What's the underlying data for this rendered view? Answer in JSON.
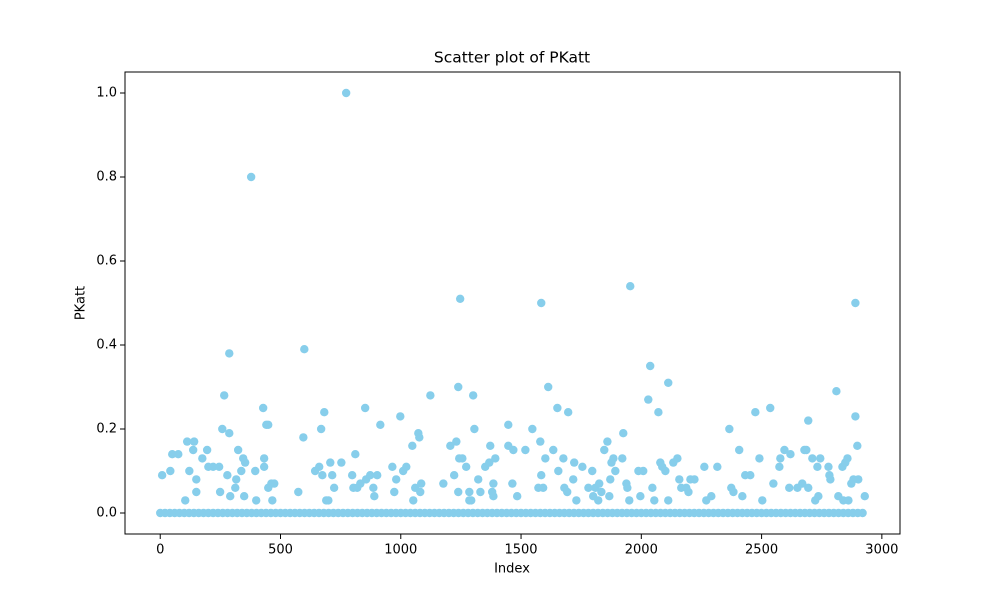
{
  "chart_data": {
    "type": "scatter",
    "title": "Scatter plot of PKatt",
    "x_label": "Index",
    "y_label": "PKatt",
    "color": "#87ceeb",
    "x": [
      0,
      20,
      40,
      60,
      80,
      100,
      120,
      140,
      160,
      180,
      200,
      220,
      240,
      260,
      280,
      300,
      320,
      340,
      360,
      380,
      400,
      420,
      440,
      460,
      480,
      500,
      520,
      540,
      560,
      580,
      600,
      620,
      640,
      660,
      680,
      700,
      720,
      740,
      760,
      780,
      800,
      820,
      840,
      860,
      880,
      900,
      920,
      940,
      960,
      980,
      1000,
      1020,
      1040,
      1060,
      1080,
      1100,
      1120,
      1140,
      1160,
      1180,
      1200,
      1220,
      1240,
      1260,
      1280,
      1300,
      1320,
      1340,
      1360,
      1380,
      1400,
      1420,
      1440,
      1460,
      1480,
      1500,
      1520,
      1540,
      1560,
      1580,
      1600,
      1620,
      1640,
      1660,
      1680,
      1700,
      1720,
      1740,
      1760,
      1780,
      1800,
      1820,
      1840,
      1860,
      1880,
      1900,
      1920,
      1940,
      1960,
      1980,
      2000,
      2020,
      2040,
      2060,
      2080,
      2100,
      2120,
      2140,
      2160,
      2180,
      2200,
      2220,
      2240,
      2260,
      2280,
      2300,
      2320,
      2340,
      2360,
      2380,
      2400,
      2420,
      2440,
      2460,
      2480,
      2500,
      2520,
      2540,
      2560,
      2580,
      2600,
      2620,
      2640,
      2660,
      2680,
      2700,
      2720,
      2740,
      2760,
      2780,
      2800,
      2820,
      2840,
      2860,
      2880,
      2900,
      2920,
      8,
      42,
      50,
      75,
      104,
      112,
      121,
      137,
      141,
      150,
      150,
      175,
      195,
      200,
      220,
      245,
      249,
      258,
      266,
      279,
      287,
      287,
      291,
      312,
      316,
      324,
      337,
      345,
      349,
      353,
      378,
      395,
      399,
      428,
      432,
      432,
      441,
      449,
      449,
      462,
      466,
      474,
      574,
      599,
      595,
      644,
      661,
      669,
      674,
      682,
      690,
      699,
      707,
      715,
      723,
      753,
      773,
      798,
      803,
      811,
      819,
      832,
      852,
      856,
      873,
      886,
      890,
      902,
      915,
      965,
      973,
      981,
      998,
      1010,
      1023,
      1048,
      1052,
      1060,
      1073,
      1077,
      1081,
      1085,
      1123,
      1177,
      1206,
      1222,
      1231,
      1239,
      1239,
      1243,
      1247,
      1256,
      1272,
      1285,
      1285,
      1293,
      1301,
      1306,
      1322,
      1331,
      1351,
      1368,
      1372,
      1380,
      1385,
      1385,
      1393,
      1447,
      1447,
      1464,
      1468,
      1484,
      1518,
      1547,
      1572,
      1580,
      1584,
      1584,
      1592,
      1601,
      1613,
      1634,
      1651,
      1655,
      1676,
      1680,
      1692,
      1696,
      1717,
      1721,
      1730,
      1755,
      1780,
      1796,
      1800,
      1809,
      1821,
      1825,
      1834,
      1846,
      1859,
      1867,
      1871,
      1876,
      1884,
      1892,
      1925,
      1921,
      1938,
      1942,
      1950,
      1954,
      1988,
      1996,
      2008,
      2029,
      2037,
      2046,
      2054,
      2071,
      2079,
      2087,
      2100,
      2112,
      2112,
      2133,
      2150,
      2158,
      2166,
      2187,
      2196,
      2204,
      2221,
      2262,
      2270,
      2291,
      2316,
      2366,
      2374,
      2383,
      2407,
      2420,
      2432,
      2453,
      2474,
      2491,
      2503,
      2536,
      2549,
      2574,
      2578,
      2595,
      2620,
      2615,
      2649,
      2669,
      2678,
      2686,
      2694,
      2694,
      2711,
      2723,
      2732,
      2744,
      2736,
      2778,
      2782,
      2786,
      2811,
      2819,
      2836,
      2840,
      2848,
      2857,
      2861,
      2873,
      2882,
      2890,
      2890,
      2898,
      2902,
      2929
    ],
    "y": [
      0,
      0,
      0,
      0,
      0,
      0,
      0,
      0,
      0,
      0,
      0,
      0,
      0,
      0,
      0,
      0,
      0,
      0,
      0,
      0,
      0,
      0,
      0,
      0,
      0,
      0,
      0,
      0,
      0,
      0,
      0,
      0,
      0,
      0,
      0,
      0,
      0,
      0,
      0,
      0,
      0,
      0,
      0,
      0,
      0,
      0,
      0,
      0,
      0,
      0,
      0,
      0,
      0,
      0,
      0,
      0,
      0,
      0,
      0,
      0,
      0,
      0,
      0,
      0,
      0,
      0,
      0,
      0,
      0,
      0,
      0,
      0,
      0,
      0,
      0,
      0,
      0,
      0,
      0,
      0,
      0,
      0,
      0,
      0,
      0,
      0,
      0,
      0,
      0,
      0,
      0,
      0,
      0,
      0,
      0,
      0,
      0,
      0,
      0,
      0,
      0,
      0,
      0,
      0,
      0,
      0,
      0,
      0,
      0,
      0,
      0,
      0,
      0,
      0,
      0,
      0,
      0,
      0,
      0,
      0,
      0,
      0,
      0,
      0,
      0,
      0,
      0,
      0,
      0,
      0,
      0,
      0,
      0,
      0,
      0,
      0,
      0,
      0,
      0,
      0,
      0,
      0,
      0,
      0,
      0,
      0,
      0,
      0.09,
      0.1,
      0.14,
      0.14,
      0.03,
      0.17,
      0.1,
      0.15,
      0.17,
      0.05,
      0.08,
      0.13,
      0.15,
      0.11,
      0.11,
      0.11,
      0.05,
      0.2,
      0.28,
      0.09,
      0.38,
      0.19,
      0.04,
      0.06,
      0.08,
      0.15,
      0.1,
      0.13,
      0.04,
      0.12,
      0.8,
      0.1,
      0.03,
      0.25,
      0.11,
      0.13,
      0.21,
      0.21,
      0.06,
      0.07,
      0.03,
      0.07,
      0.05,
      0.39,
      0.18,
      0.1,
      0.11,
      0.2,
      0.09,
      0.24,
      0.03,
      0.03,
      0.12,
      0.09,
      0.06,
      0.12,
      1.0,
      0.09,
      0.06,
      0.14,
      0.06,
      0.07,
      0.25,
      0.08,
      0.09,
      0.06,
      0.04,
      0.09,
      0.21,
      0.11,
      0.05,
      0.08,
      0.23,
      0.1,
      0.11,
      0.16,
      0.03,
      0.06,
      0.19,
      0.18,
      0.05,
      0.07,
      0.28,
      0.07,
      0.16,
      0.09,
      0.17,
      0.3,
      0.05,
      0.13,
      0.51,
      0.13,
      0.11,
      0.05,
      0.03,
      0.03,
      0.28,
      0.2,
      0.08,
      0.05,
      0.11,
      0.12,
      0.16,
      0.05,
      0.04,
      0.07,
      0.13,
      0.21,
      0.16,
      0.07,
      0.15,
      0.04,
      0.15,
      0.2,
      0.06,
      0.17,
      0.5,
      0.09,
      0.06,
      0.13,
      0.3,
      0.15,
      0.25,
      0.1,
      0.13,
      0.06,
      0.05,
      0.24,
      0.08,
      0.12,
      0.03,
      0.11,
      0.06,
      0.1,
      0.04,
      0.06,
      0.03,
      0.07,
      0.05,
      0.15,
      0.17,
      0.04,
      0.08,
      0.12,
      0.13,
      0.1,
      0.19,
      0.13,
      0.07,
      0.06,
      0.03,
      0.54,
      0.1,
      0.04,
      0.1,
      0.27,
      0.35,
      0.06,
      0.03,
      0.24,
      0.12,
      0.11,
      0.1,
      0.31,
      0.03,
      0.12,
      0.13,
      0.08,
      0.06,
      0.06,
      0.05,
      0.08,
      0.08,
      0.11,
      0.03,
      0.04,
      0.11,
      0.2,
      0.06,
      0.05,
      0.15,
      0.04,
      0.09,
      0.09,
      0.24,
      0.13,
      0.03,
      0.25,
      0.07,
      0.11,
      0.13,
      0.15,
      0.14,
      0.06,
      0.06,
      0.07,
      0.15,
      0.15,
      0.06,
      0.22,
      0.13,
      0.03,
      0.11,
      0.13,
      0.04,
      0.11,
      0.09,
      0.08,
      0.29,
      0.04,
      0.11,
      0.03,
      0.12,
      0.13,
      0.03,
      0.07,
      0.08,
      0.23,
      0.5,
      0.16,
      0.08,
      0.04
    ],
    "xlim": [
      -146.45,
      3075.45
    ],
    "ylim": [
      -0.05,
      1.05
    ],
    "xticks": [
      0,
      500,
      1000,
      1500,
      2000,
      2500,
      3000
    ],
    "yticks": [
      {
        "value": 0,
        "label": "0.0"
      },
      0.2,
      0.4,
      0.6,
      0.8,
      {
        "value": 1,
        "label": "1.0"
      }
    ]
  }
}
